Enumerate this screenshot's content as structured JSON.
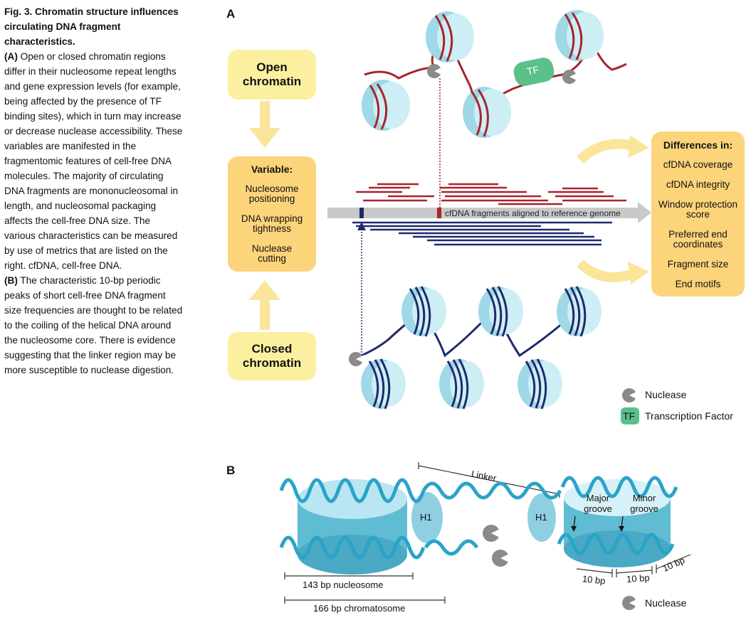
{
  "caption": {
    "title": "Fig. 3. Chromatin structure influences circulating DNA fragment characteristics.",
    "a_label": "(A)",
    "a_text": " Open or closed chromatin regions differ in their nucleosome repeat lengths and gene expression levels (for example, being affected by the presence of TF binding sites), which in turn may increase or decrease nuclease accessibility. These variables are manifested in the fragmentomic features of cell-free DNA molecules. The majority of circulating DNA fragments are mononucleosomal in length, and nucleosomal packaging affects the cell-free DNA size. The various characteristics can be measured by use of metrics that are listed on the right. cfDNA, cell-free DNA.",
    "b_label": "(B)",
    "b_text": " The characteristic 10-bp periodic peaks of short cell-free DNA fragment size frequencies are thought to be related to the coiling of the helical DNA around the nucleosome core. There is evidence suggesting that the linker region may be more susceptible to nuclease digestion."
  },
  "panel_a": {
    "label": "A",
    "open_chromatin": "Open chromatin",
    "closed_chromatin": "Closed chromatin",
    "variable_header": "Variable:",
    "variables": [
      "Nucleosome positioning",
      "DNA wrapping tightness",
      "Nuclease cutting"
    ],
    "tf_label": "TF",
    "aligned_label": "cfDNA fragments aligned to reference genome",
    "differences_header": "Differences in:",
    "differences": [
      "cfDNA coverage",
      "cfDNA integrity",
      "Window protection score",
      "Preferred end coordinates",
      "Fragment size",
      "End motifs"
    ],
    "legend": {
      "nuclease": "Nuclease",
      "tf_badge": "TF",
      "tf": "Transcription Factor"
    }
  },
  "panel_b": {
    "label": "B",
    "linker": "Linker",
    "h1_left": "H1",
    "h1_right": "H1",
    "major_groove": "Major groove",
    "minor_groove": "Minor groove",
    "nucleosome_len": "143 bp nucleosome",
    "chromatosome_len": "166 bp chromatosome",
    "period_1": "10 bp",
    "period_2": "10 bp",
    "period_3": "10 bp",
    "legend_nuclease": "Nuclease"
  },
  "colors": {
    "open_dna": "#a8242c",
    "closed_dna": "#1f2a6b",
    "nucleosome": "#9fd8e6",
    "tf": "#5cc08a",
    "nuclease": "#8a8a8a",
    "light_box": "#fbf0a0",
    "orange_box": "#fcd47a",
    "helix": "#2aa3c9"
  }
}
